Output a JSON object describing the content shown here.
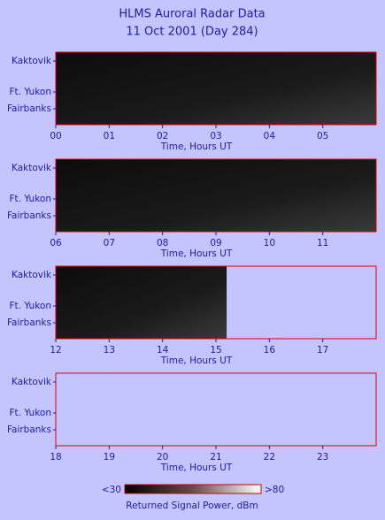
{
  "title": "HLMS Auroral Radar Data",
  "subtitle": "11 Oct 2001 (Day 284)",
  "chart_data": [
    {
      "type": "heatmap",
      "xlabel": "Time, Hours UT",
      "categories": [
        "Kaktovik",
        "Ft. Yukon",
        "Fairbanks"
      ],
      "xlim": [
        0,
        6
      ],
      "xticks": [
        {
          "value": 0,
          "label": "00"
        },
        {
          "value": 1,
          "label": "01"
        },
        {
          "value": 2,
          "label": "02"
        },
        {
          "value": 3,
          "label": "03"
        },
        {
          "value": 4,
          "label": "04"
        },
        {
          "value": 5,
          "label": "05"
        }
      ],
      "coverage": [
        0,
        6
      ]
    },
    {
      "type": "heatmap",
      "xlabel": "Time, Hours UT",
      "categories": [
        "Kaktovik",
        "Ft. Yukon",
        "Fairbanks"
      ],
      "xlim": [
        6,
        12
      ],
      "xticks": [
        {
          "value": 6,
          "label": "06"
        },
        {
          "value": 7,
          "label": "07"
        },
        {
          "value": 8,
          "label": "08"
        },
        {
          "value": 9,
          "label": "09"
        },
        10,
        11
      ],
      "coverage": [
        6,
        12
      ]
    },
    {
      "type": "heatmap",
      "xlabel": "Time, Hours UT",
      "categories": [
        "Kaktovik",
        "Ft. Yukon",
        "Fairbanks"
      ],
      "xlim": [
        12,
        18
      ],
      "xticks": [
        12,
        13,
        14,
        15,
        16,
        17
      ],
      "coverage": [
        12,
        15.2
      ]
    },
    {
      "type": "heatmap",
      "xlabel": "Time, Hours UT",
      "categories": [
        "Kaktovik",
        "Ft. Yukon",
        "Fairbanks"
      ],
      "xlim": [
        18,
        24
      ],
      "xticks": [
        18,
        19,
        20,
        21,
        22,
        23
      ]
    }
  ],
  "colorbar": {
    "min_label": "<30",
    "max_label": ">80",
    "label": "Returned Signal Power, dBm"
  }
}
